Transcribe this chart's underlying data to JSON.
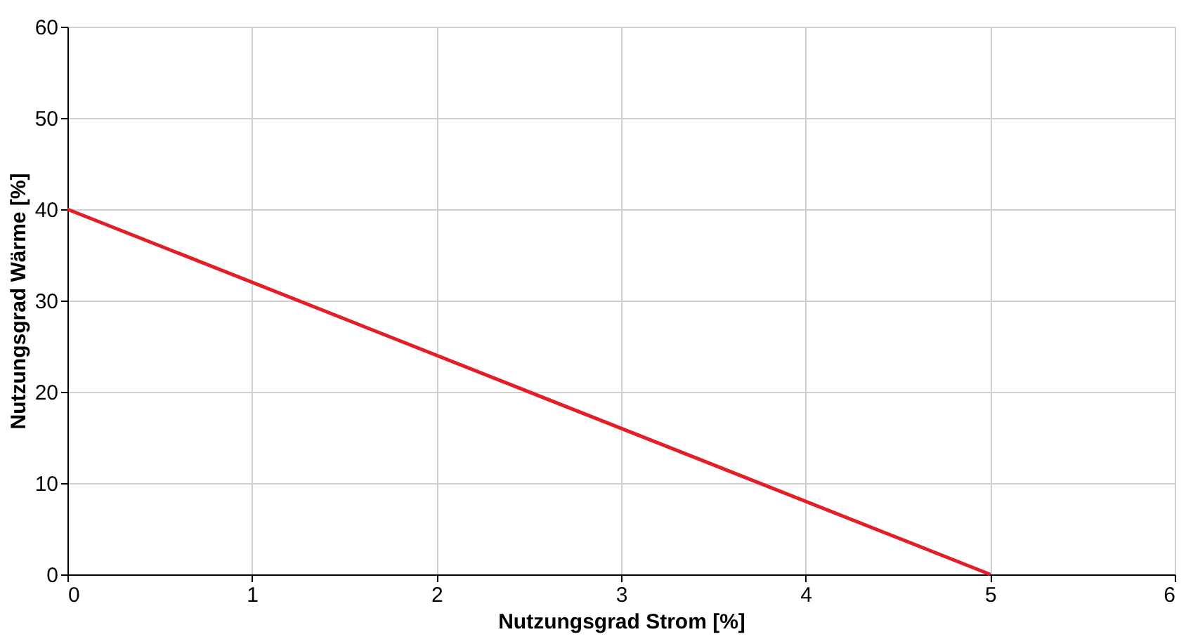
{
  "chart_data": {
    "type": "line",
    "xlabel": "Nutzungsgrad Strom [%]",
    "ylabel": "Nutzungsgrad Wärme [%]",
    "x": [
      0,
      5
    ],
    "series": [
      {
        "color": "#e41e26",
        "values": [
          40,
          0
        ]
      }
    ],
    "xlim": [
      0,
      6
    ],
    "xticks": [
      0,
      1,
      2,
      3,
      4,
      5,
      6
    ],
    "ylim": [
      0,
      60
    ],
    "yticks": [
      0,
      10,
      20,
      30,
      40,
      50,
      60
    ],
    "grid": true,
    "legend": false,
    "marker": "none",
    "line_style": "solid"
  }
}
